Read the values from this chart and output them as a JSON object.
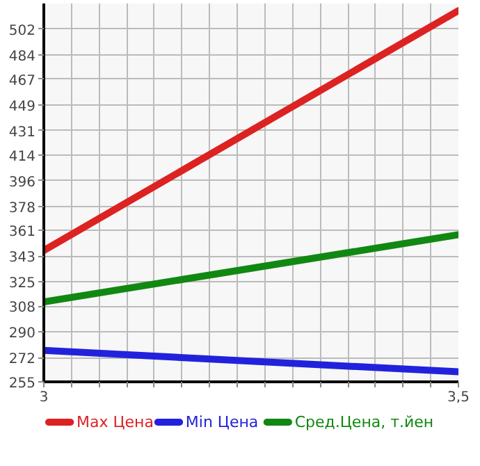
{
  "chart_data": {
    "type": "line",
    "x": [
      3,
      3.5
    ],
    "series": [
      {
        "name": "Max Цена",
        "color": "#dd2222",
        "values": [
          347,
          515
        ]
      },
      {
        "name": "Min Цена",
        "color": "#2222dd",
        "values": [
          277,
          262
        ]
      },
      {
        "name": "Сред.Цена, т.йен",
        "color": "#118811",
        "values": [
          311,
          358
        ]
      }
    ],
    "xlim": [
      3,
      3.5
    ],
    "xticks": [
      {
        "value": 3,
        "label": "3"
      },
      {
        "value": 3.0333,
        "label": null
      },
      {
        "value": 3.0667,
        "label": null
      },
      {
        "value": 3.1,
        "label": null
      },
      {
        "value": 3.1333,
        "label": null
      },
      {
        "value": 3.1667,
        "label": null
      },
      {
        "value": 3.2,
        "label": null
      },
      {
        "value": 3.2333,
        "label": null
      },
      {
        "value": 3.2667,
        "label": null
      },
      {
        "value": 3.3,
        "label": null
      },
      {
        "value": 3.3333,
        "label": null
      },
      {
        "value": 3.3667,
        "label": null
      },
      {
        "value": 3.4,
        "label": null
      },
      {
        "value": 3.4333,
        "label": null
      },
      {
        "value": 3.4667,
        "label": null
      },
      {
        "value": 3.5,
        "label": "3,5"
      }
    ],
    "ylim": [
      255,
      520
    ],
    "yticks": [
      255,
      272,
      290,
      308,
      325,
      343,
      361,
      378,
      396,
      414,
      431,
      449,
      467,
      484,
      502
    ],
    "grid": true,
    "legend": "bottom",
    "marker": "none",
    "line_style": "solid"
  }
}
